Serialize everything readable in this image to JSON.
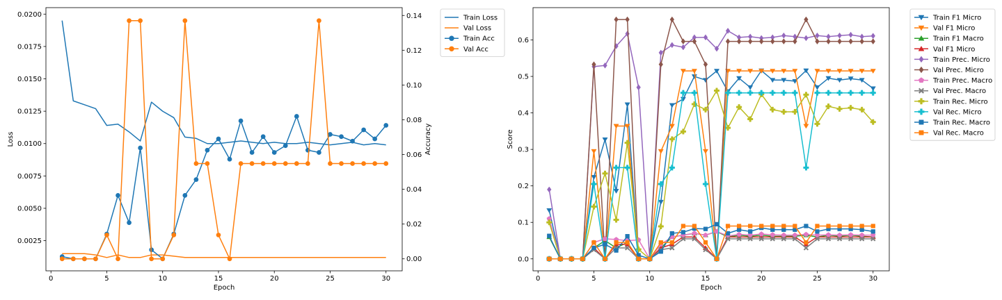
{
  "chart_data": [
    {
      "type": "line",
      "xlabel": "Epoch",
      "ylabel": "Loss",
      "y2label": "Accuracy",
      "xlim": [
        -0.45,
        31.45
      ],
      "ylim": [
        0.00017,
        0.0205
      ],
      "y2lim": [
        -0.0069,
        0.1445
      ],
      "x_ticks": [
        0,
        5,
        10,
        15,
        20,
        25,
        30
      ],
      "y_ticks": [
        0.0025,
        0.005,
        0.0075,
        0.01,
        0.0125,
        0.015,
        0.0175,
        0.02
      ],
      "y_tick_labels": [
        "0.0025",
        "0.0050",
        "0.0075",
        "0.0100",
        "0.0125",
        "0.0150",
        "0.0175",
        "0.0200"
      ],
      "y2_ticks": [
        0.0,
        0.02,
        0.04,
        0.06,
        0.08,
        0.1,
        0.12,
        0.14
      ],
      "y2_tick_labels": [
        "0.00",
        "0.02",
        "0.04",
        "0.06",
        "0.08",
        "0.10",
        "0.12",
        "0.14"
      ],
      "legend_position": "outside-top-right",
      "x": [
        1,
        2,
        3,
        4,
        5,
        6,
        7,
        8,
        9,
        10,
        11,
        12,
        13,
        14,
        15,
        16,
        17,
        18,
        19,
        20,
        21,
        22,
        23,
        24,
        25,
        26,
        27,
        28,
        29,
        30
      ],
      "series": [
        {
          "name": "Train Loss",
          "axis": "left",
          "color": "#1f77b4",
          "marker": "none",
          "values": [
            0.0195,
            0.0133,
            0.013,
            0.0127,
            0.0114,
            0.0115,
            0.0109,
            0.0102,
            0.0132,
            0.0125,
            0.012,
            0.0105,
            0.0104,
            0.01,
            0.01,
            0.0101,
            0.0102,
            0.0101,
            0.01,
            0.0101,
            0.01,
            0.01,
            0.0101,
            0.01,
            0.0099,
            0.01,
            0.0101,
            0.0099,
            0.01,
            0.0099
          ]
        },
        {
          "name": "Val Loss",
          "axis": "left",
          "color": "#ff7f0e",
          "marker": "none",
          "values": [
            0.0015,
            0.0015,
            0.0015,
            0.0014,
            0.0012,
            0.0014,
            0.0012,
            0.0012,
            0.0014,
            0.0014,
            0.0013,
            0.0012,
            0.0012,
            0.0012,
            0.0012,
            0.0012,
            0.0012,
            0.0012,
            0.0012,
            0.0012,
            0.0012,
            0.0012,
            0.0012,
            0.0012,
            0.0012,
            0.0012,
            0.0012,
            0.0012,
            0.0012,
            0.0012
          ]
        },
        {
          "name": "Train Acc",
          "axis": "right",
          "color": "#1f77b4",
          "marker": "circle",
          "values": [
            0.0013,
            0.0,
            0.0,
            0.0,
            0.0143,
            0.0365,
            0.0208,
            0.0638,
            0.0052,
            0.0,
            0.0143,
            0.0365,
            0.0456,
            0.0625,
            0.069,
            0.0573,
            0.0794,
            0.0612,
            0.0703,
            0.0612,
            0.0651,
            0.082,
            0.0625,
            0.0612,
            0.0716,
            0.0703,
            0.0677,
            0.0742,
            0.069,
            0.0768
          ]
        },
        {
          "name": "Val Acc",
          "axis": "right",
          "color": "#ff7f0e",
          "marker": "circle",
          "values": [
            0.0,
            0.0,
            0.0,
            0.0,
            0.0137,
            0.0,
            0.137,
            0.137,
            0.0,
            0.0,
            0.0137,
            0.137,
            0.0548,
            0.0548,
            0.0137,
            0.0,
            0.0548,
            0.0548,
            0.0548,
            0.0548,
            0.0548,
            0.0548,
            0.0548,
            0.137,
            0.0548,
            0.0548,
            0.0548,
            0.0548,
            0.0548,
            0.0548
          ]
        }
      ]
    },
    {
      "type": "line",
      "xlabel": "Epoch",
      "ylabel": "Score",
      "xlim": [
        -0.45,
        31.45
      ],
      "ylim": [
        -0.0328,
        0.6885
      ],
      "x_ticks": [
        0,
        5,
        10,
        15,
        20,
        25,
        30
      ],
      "y_ticks": [
        0.0,
        0.1,
        0.2,
        0.3,
        0.4,
        0.5,
        0.6
      ],
      "y_tick_labels": [
        "0.0",
        "0.1",
        "0.2",
        "0.3",
        "0.4",
        "0.5",
        "0.6"
      ],
      "legend_position": "outside-top-right",
      "x": [
        1,
        2,
        3,
        4,
        5,
        6,
        7,
        8,
        9,
        10,
        11,
        12,
        13,
        14,
        15,
        16,
        17,
        18,
        19,
        20,
        21,
        22,
        23,
        24,
        25,
        26,
        27,
        28,
        29,
        30
      ],
      "series": [
        {
          "name": "Train F1 Micro",
          "color": "#1f77b4",
          "marker": "triangle_down",
          "values": [
            0.133,
            0.0,
            0.0,
            0.0,
            0.224,
            0.327,
            0.186,
            0.423,
            0.0,
            0.0,
            0.156,
            0.421,
            0.438,
            0.5,
            0.49,
            0.515,
            0.459,
            0.495,
            0.47,
            0.516,
            0.49,
            0.49,
            0.487,
            0.516,
            0.47,
            0.495,
            0.49,
            0.494,
            0.49,
            0.467
          ]
        },
        {
          "name": "Val F1 Micro",
          "color": "#ff7f0e",
          "marker": "triangle_down",
          "values": [
            0.0,
            0.0,
            0.0,
            0.0,
            0.295,
            0.0,
            0.364,
            0.364,
            0.0,
            0.0,
            0.295,
            0.364,
            0.515,
            0.515,
            0.295,
            0.0,
            0.515,
            0.515,
            0.515,
            0.515,
            0.515,
            0.515,
            0.515,
            0.364,
            0.515,
            0.515,
            0.515,
            0.515,
            0.515,
            0.515
          ]
        },
        {
          "name": "Train F1 Macro",
          "color": "#2ca02c",
          "marker": "triangle_up",
          "values": [
            0.06,
            0.0,
            0.0,
            0.0,
            0.03,
            0.05,
            0.03,
            0.045,
            0.0,
            0.0,
            0.03,
            0.06,
            0.065,
            0.07,
            0.065,
            0.075,
            0.06,
            0.065,
            0.062,
            0.065,
            0.062,
            0.062,
            0.062,
            0.065,
            0.06,
            0.065,
            0.062,
            0.065,
            0.062,
            0.06
          ]
        },
        {
          "name": "Val F1 Micro",
          "color": "#d62728",
          "marker": "triangle_up",
          "values": [
            0.0,
            0.0,
            0.0,
            0.0,
            0.03,
            0.0,
            0.04,
            0.04,
            0.0,
            0.0,
            0.03,
            0.04,
            0.06,
            0.06,
            0.03,
            0.0,
            0.06,
            0.06,
            0.06,
            0.06,
            0.06,
            0.06,
            0.06,
            0.04,
            0.06,
            0.06,
            0.06,
            0.06,
            0.06,
            0.06
          ]
        },
        {
          "name": "Train Prec. Micro",
          "color": "#9467bd",
          "marker": "diamond",
          "values": [
            0.19,
            0.0,
            0.0,
            0.0,
            0.527,
            0.53,
            0.583,
            0.617,
            0.47,
            0.0,
            0.565,
            0.586,
            0.58,
            0.607,
            0.607,
            0.576,
            0.625,
            0.607,
            0.609,
            0.605,
            0.607,
            0.612,
            0.609,
            0.605,
            0.612,
            0.609,
            0.612,
            0.614,
            0.609,
            0.611
          ]
        },
        {
          "name": "Val Prec. Micro",
          "color": "#8c564b",
          "marker": "diamond",
          "values": [
            0.0,
            0.0,
            0.0,
            0.0,
            0.533,
            0.0,
            0.656,
            0.656,
            0.0,
            0.0,
            0.533,
            0.656,
            0.596,
            0.596,
            0.533,
            0.0,
            0.596,
            0.596,
            0.596,
            0.596,
            0.596,
            0.596,
            0.596,
            0.656,
            0.596,
            0.596,
            0.596,
            0.596,
            0.596,
            0.596
          ]
        },
        {
          "name": "Train Prec. Macro",
          "color": "#e377c2",
          "marker": "pentagon",
          "values": [
            0.11,
            0.0,
            0.0,
            0.0,
            0.045,
            0.055,
            0.053,
            0.05,
            0.052,
            0.0,
            0.04,
            0.06,
            0.065,
            0.07,
            0.065,
            0.075,
            0.063,
            0.067,
            0.065,
            0.068,
            0.066,
            0.065,
            0.065,
            0.067,
            0.065,
            0.066,
            0.065,
            0.066,
            0.065,
            0.065
          ]
        },
        {
          "name": "Val Prec. Macro",
          "color": "#7f7f7f",
          "marker": "x",
          "values": [
            0.0,
            0.0,
            0.0,
            0.0,
            0.025,
            0.0,
            0.03,
            0.03,
            0.0,
            0.0,
            0.025,
            0.03,
            0.055,
            0.055,
            0.025,
            0.0,
            0.055,
            0.055,
            0.055,
            0.055,
            0.055,
            0.055,
            0.055,
            0.03,
            0.055,
            0.055,
            0.055,
            0.055,
            0.055,
            0.055
          ]
        },
        {
          "name": "Train Rec. Micro",
          "color": "#bcbd22",
          "marker": "plus",
          "values": [
            0.1,
            0.0,
            0.0,
            0.0,
            0.143,
            0.234,
            0.107,
            0.318,
            0.026,
            0.0,
            0.089,
            0.328,
            0.349,
            0.424,
            0.409,
            0.461,
            0.359,
            0.416,
            0.383,
            0.451,
            0.409,
            0.403,
            0.403,
            0.45,
            0.37,
            0.418,
            0.411,
            0.414,
            0.409,
            0.375
          ]
        },
        {
          "name": "Val Rec. Micro",
          "color": "#17becf",
          "marker": "plus",
          "values": [
            0.0,
            0.0,
            0.0,
            0.0,
            0.205,
            0.0,
            0.25,
            0.25,
            0.0,
            0.0,
            0.205,
            0.25,
            0.455,
            0.455,
            0.205,
            0.0,
            0.455,
            0.455,
            0.455,
            0.455,
            0.455,
            0.455,
            0.455,
            0.25,
            0.455,
            0.455,
            0.455,
            0.455,
            0.455,
            0.455
          ]
        },
        {
          "name": "Train Rec. Macro",
          "color": "#1f77b4",
          "marker": "square",
          "values": [
            0.063,
            0.0,
            0.0,
            0.0,
            0.03,
            0.04,
            0.023,
            0.062,
            0.01,
            0.0,
            0.02,
            0.07,
            0.073,
            0.083,
            0.082,
            0.095,
            0.07,
            0.08,
            0.075,
            0.085,
            0.08,
            0.08,
            0.08,
            0.09,
            0.075,
            0.082,
            0.082,
            0.082,
            0.08,
            0.075
          ]
        },
        {
          "name": "Val Rec. Macro",
          "color": "#ff7f0e",
          "marker": "square",
          "values": [
            0.0,
            0.0,
            0.0,
            0.0,
            0.045,
            0.0,
            0.045,
            0.045,
            0.0,
            0.0,
            0.045,
            0.045,
            0.09,
            0.09,
            0.045,
            0.0,
            0.09,
            0.09,
            0.09,
            0.09,
            0.09,
            0.09,
            0.09,
            0.045,
            0.09,
            0.09,
            0.09,
            0.09,
            0.09,
            0.09
          ]
        }
      ]
    }
  ]
}
